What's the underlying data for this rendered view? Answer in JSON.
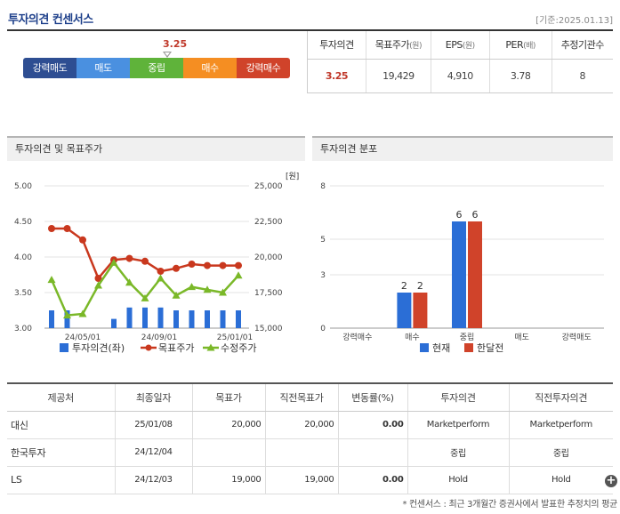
{
  "header": {
    "title": "투자의견 컨센서스",
    "base_date": "[기준:2025.01.13]"
  },
  "gauge": {
    "value": 3.25,
    "value_label": "3.25",
    "segments": [
      {
        "label": "강력매도",
        "color": "#2e4e92"
      },
      {
        "label": "매도",
        "color": "#4a90e0"
      },
      {
        "label": "중립",
        "color": "#5fb33a"
      },
      {
        "label": "매수",
        "color": "#f58e22"
      },
      {
        "label": "강력매수",
        "color": "#d0432a"
      }
    ]
  },
  "summary": {
    "headers": [
      {
        "label": "투자의견",
        "unit": ""
      },
      {
        "label": "목표주가",
        "unit": "(원)"
      },
      {
        "label": "EPS",
        "unit": "(원)"
      },
      {
        "label": "PER",
        "unit": "(배)"
      },
      {
        "label": "추정기관수",
        "unit": ""
      }
    ],
    "values": [
      "3.25",
      "19,429",
      "4,910",
      "3.78",
      "8"
    ]
  },
  "left_panel": {
    "title": "투자의견 및 목표주가"
  },
  "right_panel": {
    "title": "투자의견 분포"
  },
  "chart_data": [
    {
      "type": "bar+line",
      "title": "투자의견 및 목표주가",
      "y_left": {
        "ticks": [
          "5.00",
          "4.50",
          "4.00",
          "3.50",
          "3.00"
        ],
        "range": [
          3.0,
          5.0
        ]
      },
      "y_right": {
        "unit": "[원]",
        "ticks": [
          "25,000",
          "22,500",
          "20,000",
          "17,500",
          "15,000"
        ],
        "range": [
          15000,
          25000
        ]
      },
      "x_ticks": [
        "24/05/01",
        "24/09/01",
        "25/01/01"
      ],
      "series": [
        {
          "name": "투자의견(좌)",
          "kind": "bar",
          "color": "#2b6ed6",
          "values": [
            3.25,
            3.25,
            null,
            null,
            3.13,
            3.29,
            3.29,
            3.29,
            3.25,
            3.25,
            3.25,
            3.25,
            3.25
          ]
        },
        {
          "name": "목표주가",
          "kind": "line",
          "color": "#c9381e",
          "values": [
            22000,
            22000,
            21200,
            18500,
            19800,
            19900,
            19700,
            19000,
            19200,
            19500,
            19400,
            19400,
            19400
          ]
        },
        {
          "name": "수정주가",
          "kind": "line",
          "color": "#7ab828",
          "values": [
            18400,
            15900,
            16000,
            18000,
            19600,
            18200,
            17100,
            18500,
            17300,
            17900,
            17700,
            17500,
            18700
          ]
        }
      ],
      "legend_position": "bottom"
    },
    {
      "type": "bar",
      "title": "투자의견 분포",
      "categories": [
        "강력매수",
        "매수",
        "중립",
        "매도",
        "강력매도"
      ],
      "y_ticks": [
        "8",
        "5",
        "3",
        "0"
      ],
      "ylim": [
        0,
        8
      ],
      "series": [
        {
          "name": "현재",
          "color": "#2b6ed6",
          "values": [
            0,
            2,
            6,
            0,
            0
          ]
        },
        {
          "name": "한달전",
          "color": "#d0432a",
          "values": [
            0,
            2,
            6,
            0,
            0
          ]
        }
      ],
      "legend_position": "bottom"
    }
  ],
  "detail": {
    "headers": [
      "제공처",
      "최종일자",
      "목표가",
      "직전목표가",
      "변동률(%)",
      "투자의견",
      "직전투자의견"
    ],
    "rows": [
      [
        "대신",
        "25/01/08",
        "20,000",
        "20,000",
        "0.00",
        "Marketperform",
        "Marketperform"
      ],
      [
        "한국투자",
        "24/12/04",
        "",
        "",
        "",
        "중립",
        "중립"
      ],
      [
        "LS",
        "24/12/03",
        "19,000",
        "19,000",
        "0.00",
        "Hold",
        "Hold"
      ]
    ]
  },
  "footnote": "* 컨센서스 : 최근 3개월간 증권사에서 발표한 추정치의 평균"
}
